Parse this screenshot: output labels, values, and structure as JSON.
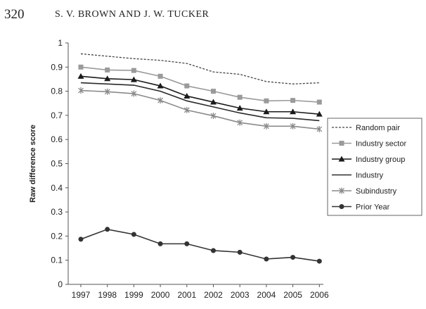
{
  "page": {
    "number": "320",
    "running_head": "S. V. BROWN AND J. W. TUCKER"
  },
  "chart_data": {
    "type": "line",
    "title": "",
    "xlabel": "",
    "ylabel": "Raw difference score",
    "ylim": [
      0,
      1
    ],
    "yticks": [
      "0",
      "0.1",
      "0.2",
      "0.3",
      "0.4",
      "0.5",
      "0.6",
      "0.7",
      "0.8",
      "0.9",
      "1"
    ],
    "x": [
      "1997",
      "1998",
      "1999",
      "2000",
      "2001",
      "2002",
      "2003",
      "2004",
      "2005",
      "2006"
    ],
    "grid": false,
    "legend_position": "right",
    "series": [
      {
        "name": "Random pair",
        "style": "dashed",
        "marker": "none",
        "color": "#444444",
        "values": [
          0.955,
          0.945,
          0.935,
          0.928,
          0.915,
          0.88,
          0.87,
          0.84,
          0.83,
          0.835
        ]
      },
      {
        "name": "Industry sector",
        "style": "solid",
        "marker": "square",
        "color": "#9a9a9a",
        "values": [
          0.9,
          0.888,
          0.886,
          0.862,
          0.822,
          0.8,
          0.775,
          0.76,
          0.762,
          0.755
        ]
      },
      {
        "name": "Industry group",
        "style": "solid",
        "marker": "triangle",
        "color": "#1a1a1a",
        "values": [
          0.862,
          0.852,
          0.848,
          0.822,
          0.78,
          0.755,
          0.73,
          0.715,
          0.715,
          0.705
        ]
      },
      {
        "name": "Industry",
        "style": "solid",
        "marker": "none",
        "color": "#2a2a2a",
        "values": [
          0.835,
          0.83,
          0.825,
          0.8,
          0.76,
          0.735,
          0.71,
          0.69,
          0.688,
          0.678
        ]
      },
      {
        "name": "Subindustry",
        "style": "solid",
        "marker": "star",
        "color": "#8a8a8a",
        "values": [
          0.803,
          0.798,
          0.79,
          0.762,
          0.722,
          0.698,
          0.67,
          0.655,
          0.655,
          0.643
        ]
      },
      {
        "name": "Prior Year",
        "style": "solid",
        "marker": "circle",
        "color": "#333333",
        "values": [
          0.187,
          0.228,
          0.207,
          0.168,
          0.168,
          0.14,
          0.133,
          0.105,
          0.112,
          0.096
        ]
      }
    ]
  }
}
